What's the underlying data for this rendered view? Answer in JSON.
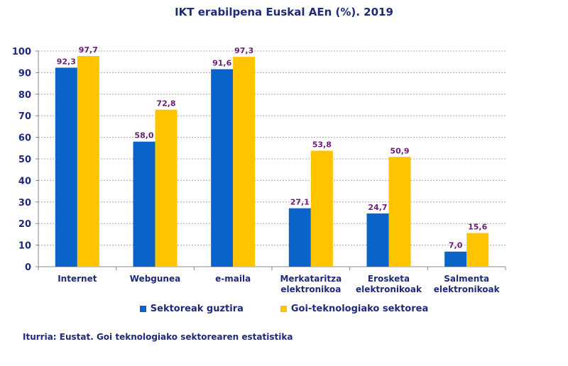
{
  "chart_data": {
    "type": "bar",
    "title": "IKT erabilpena Euskal AEn (%). 2019",
    "categories": [
      [
        "Internet"
      ],
      [
        "Webgunea"
      ],
      [
        "e-maila"
      ],
      [
        "Merkataritza",
        "elektronikoa"
      ],
      [
        "Erosketa",
        "elektronikoak"
      ],
      [
        "Salmenta",
        "elektronikoak"
      ]
    ],
    "series": [
      {
        "name": "Sektoreak guztira",
        "color": "#0a63c9",
        "values": [
          92.3,
          58.0,
          91.6,
          27.1,
          24.7,
          7.0
        ],
        "labels": [
          "92,3",
          "58,0",
          "91,6",
          "27,1",
          "24,7",
          "7,0"
        ]
      },
      {
        "name": "Goi-teknologiako sektorea",
        "color": "#ffc400",
        "values": [
          97.7,
          72.8,
          97.3,
          53.8,
          50.9,
          15.6
        ],
        "labels": [
          "97,7",
          "72,8",
          "97,3",
          "53,8",
          "50,9",
          "15,6"
        ]
      }
    ],
    "ylim": [
      0,
      100
    ],
    "yticks": [
      0,
      10,
      20,
      30,
      40,
      50,
      60,
      70,
      80,
      90,
      100
    ],
    "grid": true,
    "legend": "bottom",
    "xlabel": "",
    "ylabel": "",
    "label_color": "#6b1e78",
    "axis_text_color": "#1f2a78"
  },
  "source": "Iturria: Eustat. Goi teknologiako sektorearen estatistika"
}
